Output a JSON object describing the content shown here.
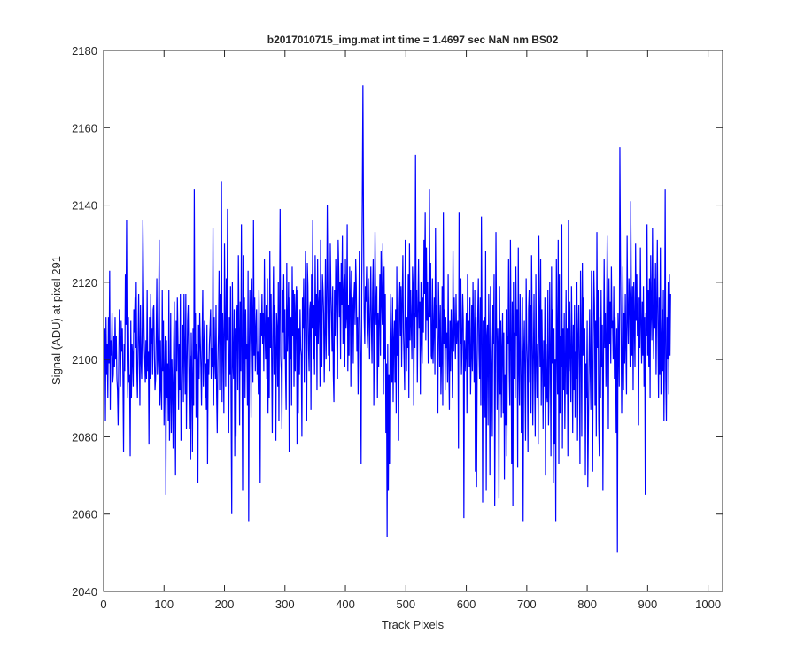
{
  "chart_data": {
    "type": "line",
    "title": "b2017010715_img.mat int time = 1.4697 sec  NaN nm BS02",
    "xlabel": "Track Pixels",
    "ylabel": "Signal (ADU) at pixel 291",
    "xlim": [
      0,
      1024
    ],
    "ylim": [
      2040,
      2180
    ],
    "xticks": [
      0,
      100,
      200,
      300,
      400,
      500,
      600,
      700,
      800,
      900,
      1000
    ],
    "yticks": [
      2040,
      2060,
      2080,
      2100,
      2120,
      2140,
      2160,
      2180
    ],
    "grid": false,
    "series": [
      {
        "color": "#0000ff",
        "x_start": 1,
        "x_step": 1,
        "y": [
          2100,
          2108,
          2084,
          2111,
          2096,
          2104,
          2090,
          2111,
          2099,
          2123,
          2087,
          2105,
          2101,
          2112,
          2094,
          2096,
          2106,
          2098,
          2111,
          2100,
          2106,
          2095,
          2092,
          2083,
          2099,
          2113,
          2106,
          2093,
          2110,
          2102,
          2108,
          2095,
          2076,
          2104,
          2097,
          2122,
          2109,
          2136,
          2100,
          2090,
          2111,
          2094,
          2096,
          2075,
          2110,
          2090,
          2104,
          2101,
          2093,
          2113,
          2107,
          2116,
          2103,
          2120,
          2097,
          2090,
          2104,
          2117,
          2103,
          2088,
          2114,
          2100,
          2095,
          2109,
          2136,
          2120,
          2106,
          2100,
          2094,
          2105,
          2095,
          2118,
          2097,
          2102,
          2078,
          2111,
          2095,
          2117,
          2104,
          2108,
          2096,
          2113,
          2114,
          2101,
          2092,
          2095,
          2106,
          2121,
          2096,
          2100,
          2112,
          2131,
          2088,
          2105,
          2092,
          2087,
          2118,
          2097,
          2110,
          2083,
          2096,
          2106,
          2065,
          2105,
          2090,
          2099,
          2084,
          2118,
          2079,
          2091,
          2112,
          2081,
          2100,
          2093,
          2077,
          2104,
          2115,
          2092,
          2070,
          2110,
          2097,
          2116,
          2106,
          2087,
          2104,
          2092,
          2117,
          2079,
          2085,
          2102,
          2109,
          2089,
          2117,
          2102,
          2091,
          2117,
          2082,
          2098,
          2110,
          2114,
          2098,
          2082,
          2101,
          2074,
          2107,
          2095,
          2076,
          2108,
          2088,
          2144,
          2100,
          2112,
          2085,
          2104,
          2100,
          2068,
          2109,
          2095,
          2112,
          2105,
          2098,
          2088,
          2106,
          2118,
          2093,
          2103,
          2110,
          2090,
          2099,
          2087,
          2109,
          2073,
          2100,
          2096,
          2104,
          2108,
          2113,
          2095,
          2103,
          2098,
          2134,
          2088,
          2111,
          2100,
          2095,
          2114,
          2091,
          2081,
          2099,
          2107,
          2123,
          2092,
          2117,
          2104,
          2146,
          2089,
          2112,
          2104,
          2086,
          2130,
          2110,
          2093,
          2121,
          2105,
          2139,
          2097,
          2081,
          2111,
          2096,
          2119,
          2086,
          2060,
          2120,
          2100,
          2095,
          2113,
          2075,
          2108,
          2080,
          2110,
          2114,
          2092,
          2127,
          2108,
          2083,
          2115,
          2097,
          2135,
          2101,
          2066,
          2127,
          2099,
          2116,
          2090,
          2113,
          2100,
          2104,
          2088,
          2123,
          2058,
          2103,
          2118,
          2107,
          2085,
          2121,
          2110,
          2094,
          2136,
          2101,
          2116,
          2097,
          2108,
          2113,
          2096,
          2102,
          2091,
          2118,
          2100,
          2068,
          2112,
          2106,
          2117,
          2104,
          2112,
          2097,
          2126,
          2107,
          2100,
          2114,
          2095,
          2121,
          2086,
          2111,
          2090,
          2128,
          2103,
          2117,
          2099,
          2081,
          2109,
          2124,
          2096,
          2114,
          2103,
          2079,
          2112,
          2108,
          2093,
          2120,
          2084,
          2114,
          2139,
          2101,
          2097,
          2082,
          2118,
          2107,
          2122,
          2100,
          2113,
          2096,
          2087,
          2125,
          2102,
          2110,
          2120,
          2076,
          2116,
          2100,
          2111,
          2088,
          2124,
          2106,
          2118,
          2093,
          2117,
          2097,
          2112,
          2119,
          2078,
          2118,
          2086,
          2108,
          2096,
          2113,
          2103,
          2101,
          2080,
          2116,
          2108,
          2121,
          2094,
          2112,
          2128,
          2100,
          2084,
          2125,
          2119,
          2103,
          2097,
          2113,
          2115,
          2087,
          2122,
          2108,
          2136,
          2100,
          2114,
          2096,
          2127,
          2106,
          2117,
          2092,
          2126,
          2104,
          2114,
          2118,
          2093,
          2131,
          2110,
          2098,
          2122,
          2118,
          2112,
          2094,
          2107,
          2126,
          2100,
          2112,
          2140,
          2119,
          2101,
          2113,
          2097,
          2130,
          2118,
          2111,
          2102,
          2119,
          2096,
          2089,
          2118,
          2106,
          2126,
          2117,
          2103,
          2095,
          2131,
          2123,
          2111,
          2120,
          2100,
          2125,
          2114,
          2132,
          2104,
          2117,
          2122,
          2098,
          2126,
          2108,
          2111,
          2135,
          2097,
          2114,
          2101,
          2124,
          2116,
          2093,
          2123,
          2108,
          2116,
          2099,
          2116,
          2120,
          2109,
          2126,
          2119,
          2102,
          2111,
          2091,
          2106,
          2128,
          2111,
          2100,
          2073,
          2118,
          2143,
          2171,
          2134,
          2111,
          2104,
          2119,
          2115,
          2124,
          2107,
          2103,
          2121,
          2111,
          2100,
          2113,
          2124,
          2109,
          2099,
          2117,
          2126,
          2088,
          2108,
          2133,
          2116,
          2109,
          2119,
          2090,
          2112,
          2098,
          2111,
          2122,
          2101,
          2128,
          2115,
          2109,
          2130,
          2091,
          2124,
          2100,
          2117,
          2081,
          2099,
          2054,
          2104,
          2066,
          2096,
          2073,
          2106,
          2117,
          2101,
          2094,
          2116,
          2089,
          2105,
          2110,
          2094,
          2113,
          2086,
          2124,
          2101,
          2103,
          2079,
          2113,
          2120,
          2106,
          2119,
          2098,
          2115,
          2127,
          2107,
          2100,
          2092,
          2131,
          2112,
          2097,
          2111,
          2103,
          2122,
          2090,
          2130,
          2105,
          2118,
          2109,
          2100,
          2124,
          2119,
          2088,
          2112,
          2103,
          2153,
          2111,
          2118,
          2094,
          2113,
          2126,
          2108,
          2115,
          2091,
          2120,
          2105,
          2099,
          2116,
          2107,
          2131,
          2117,
          2138,
          2105,
          2129,
          2110,
          2120,
          2099,
          2106,
          2144,
          2111,
          2125,
          2101,
          2100,
          2121,
          2099,
          2108,
          2116,
          2096,
          2134,
          2108,
          2114,
          2101,
          2086,
          2120,
          2110,
          2098,
          2114,
          2091,
          2100,
          2119,
          2088,
          2138,
          2104,
          2113,
          2092,
          2111,
          2103,
          2107,
          2094,
          2122,
          2100,
          2087,
          2110,
          2097,
          2113,
          2105,
          2090,
          2128,
          2102,
          2116,
          2107,
          2100,
          2117,
          2104,
          2109,
          2110,
          2077,
          2138,
          2115,
          2104,
          2121,
          2096,
          2104,
          2117,
          2110,
          2059,
          2105,
          2097,
          2102,
          2112,
          2086,
          2122,
          2104,
          2110,
          2098,
          2116,
          2091,
          2100,
          2114,
          2097,
          2120,
          2106,
          2094,
          2118,
          2071,
          2111,
          2067,
          2098,
          2112,
          2121,
          2102,
          2095,
          2116,
          2088,
          2137,
          2108,
          2063,
          2110,
          2093,
          2111,
          2085,
          2128,
          2066,
          2106,
          2109,
          2083,
          2117,
          2101,
          2070,
          2119,
          2107,
          2097,
          2080,
          2114,
          2104,
          2122,
          2062,
          2094,
          2133,
          2109,
          2087,
          2108,
          2101,
          2064,
          2119,
          2091,
          2110,
          2085,
          2103,
          2112,
          2086,
          2107,
          2069,
          2096,
          2083,
          2113,
          2075,
          2106,
          2104,
          2126,
          2097,
          2088,
          2131,
          2106,
          2073,
          2115,
          2062,
          2120,
          2095,
          2107,
          2090,
          2124,
          2106,
          2113,
          2072,
          2129,
          2098,
          2088,
          2117,
          2103,
          2081,
          2093,
          2116,
          2058,
          2102,
          2110,
          2096,
          2079,
          2121,
          2105,
          2099,
          2076,
          2113,
          2118,
          2094,
          2114,
          2086,
          2127,
          2108,
          2083,
          2100,
          2117,
          2096,
          2080,
          2122,
          2101,
          2090,
          2104,
          2078,
          2132,
          2109,
          2098,
          2126,
          2088,
          2113,
          2100,
          2082,
          2105,
          2093,
          2116,
          2070,
          2104,
          2091,
          2089,
          2118,
          2083,
          2094,
          2120,
          2101,
          2075,
          2124,
          2099,
          2113,
          2068,
          2108,
          2078,
          2100,
          2058,
          2126,
          2105,
          2091,
          2131,
          2073,
          2122,
          2086,
          2106,
          2098,
          2135,
          2077,
          2108,
          2092,
          2112,
          2082,
          2099,
          2118,
          2091,
          2108,
          2075,
          2136,
          2097,
          2115,
          2100,
          2089,
          2119,
          2104,
          2081,
          2109,
          2092,
          2114,
          2085,
          2102,
          2095,
          2120,
          2079,
          2106,
          2114,
          2098,
          2073,
          2123,
          2106,
          2080,
          2125,
          2101,
          2116,
          2104,
          2108,
          2070,
          2099,
          2090,
          2110,
          2067,
          2083,
          2099,
          2113,
          2097,
          2087,
          2123,
          2101,
          2071,
          2106,
          2123,
          2114,
          2088,
          2110,
          2080,
          2133,
          2103,
          2118,
          2084,
          2075,
          2111,
          2090,
          2118,
          2098,
          2109,
          2066,
          2101,
          2126,
          2103,
          2112,
          2093,
          2106,
          2132,
          2115,
          2082,
          2121,
          2104,
          2115,
          2099,
          2124,
          2108,
          2110,
          2100,
          2119,
          2095,
          2111,
          2103,
          2081,
          2108,
          2050,
          2112,
          2105,
          2093,
          2155,
          2127,
          2107,
          2086,
          2104,
          2124,
          2092,
          2112,
          2099,
          2117,
          2103,
          2091,
          2132,
          2111,
          2104,
          2121,
          2115,
          2098,
          2141,
          2117,
          2101,
          2119,
          2092,
          2120,
          2109,
          2098,
          2130,
          2110,
          2122,
          2106,
          2111,
          2083,
          2116,
          2103,
          2129,
          2109,
          2099,
          2115,
          2101,
          2119,
          2093,
          2111,
          2065,
          2112,
          2106,
          2135,
          2101,
          2118,
          2098,
          2121,
          2090,
          2127,
          2113,
          2105,
          2134,
          2110,
          2100,
          2121,
          2108,
          2125,
          2096,
          2113,
          2131,
          2109,
          2090,
          2116,
          2096,
          2129,
          2091,
          2104,
          2113,
          2097,
          2118,
          2084,
          2104,
          2144,
          2095,
          2084,
          2111,
          2100,
          2120,
          2091,
          2122,
          2101,
          2117
        ]
      }
    ]
  }
}
